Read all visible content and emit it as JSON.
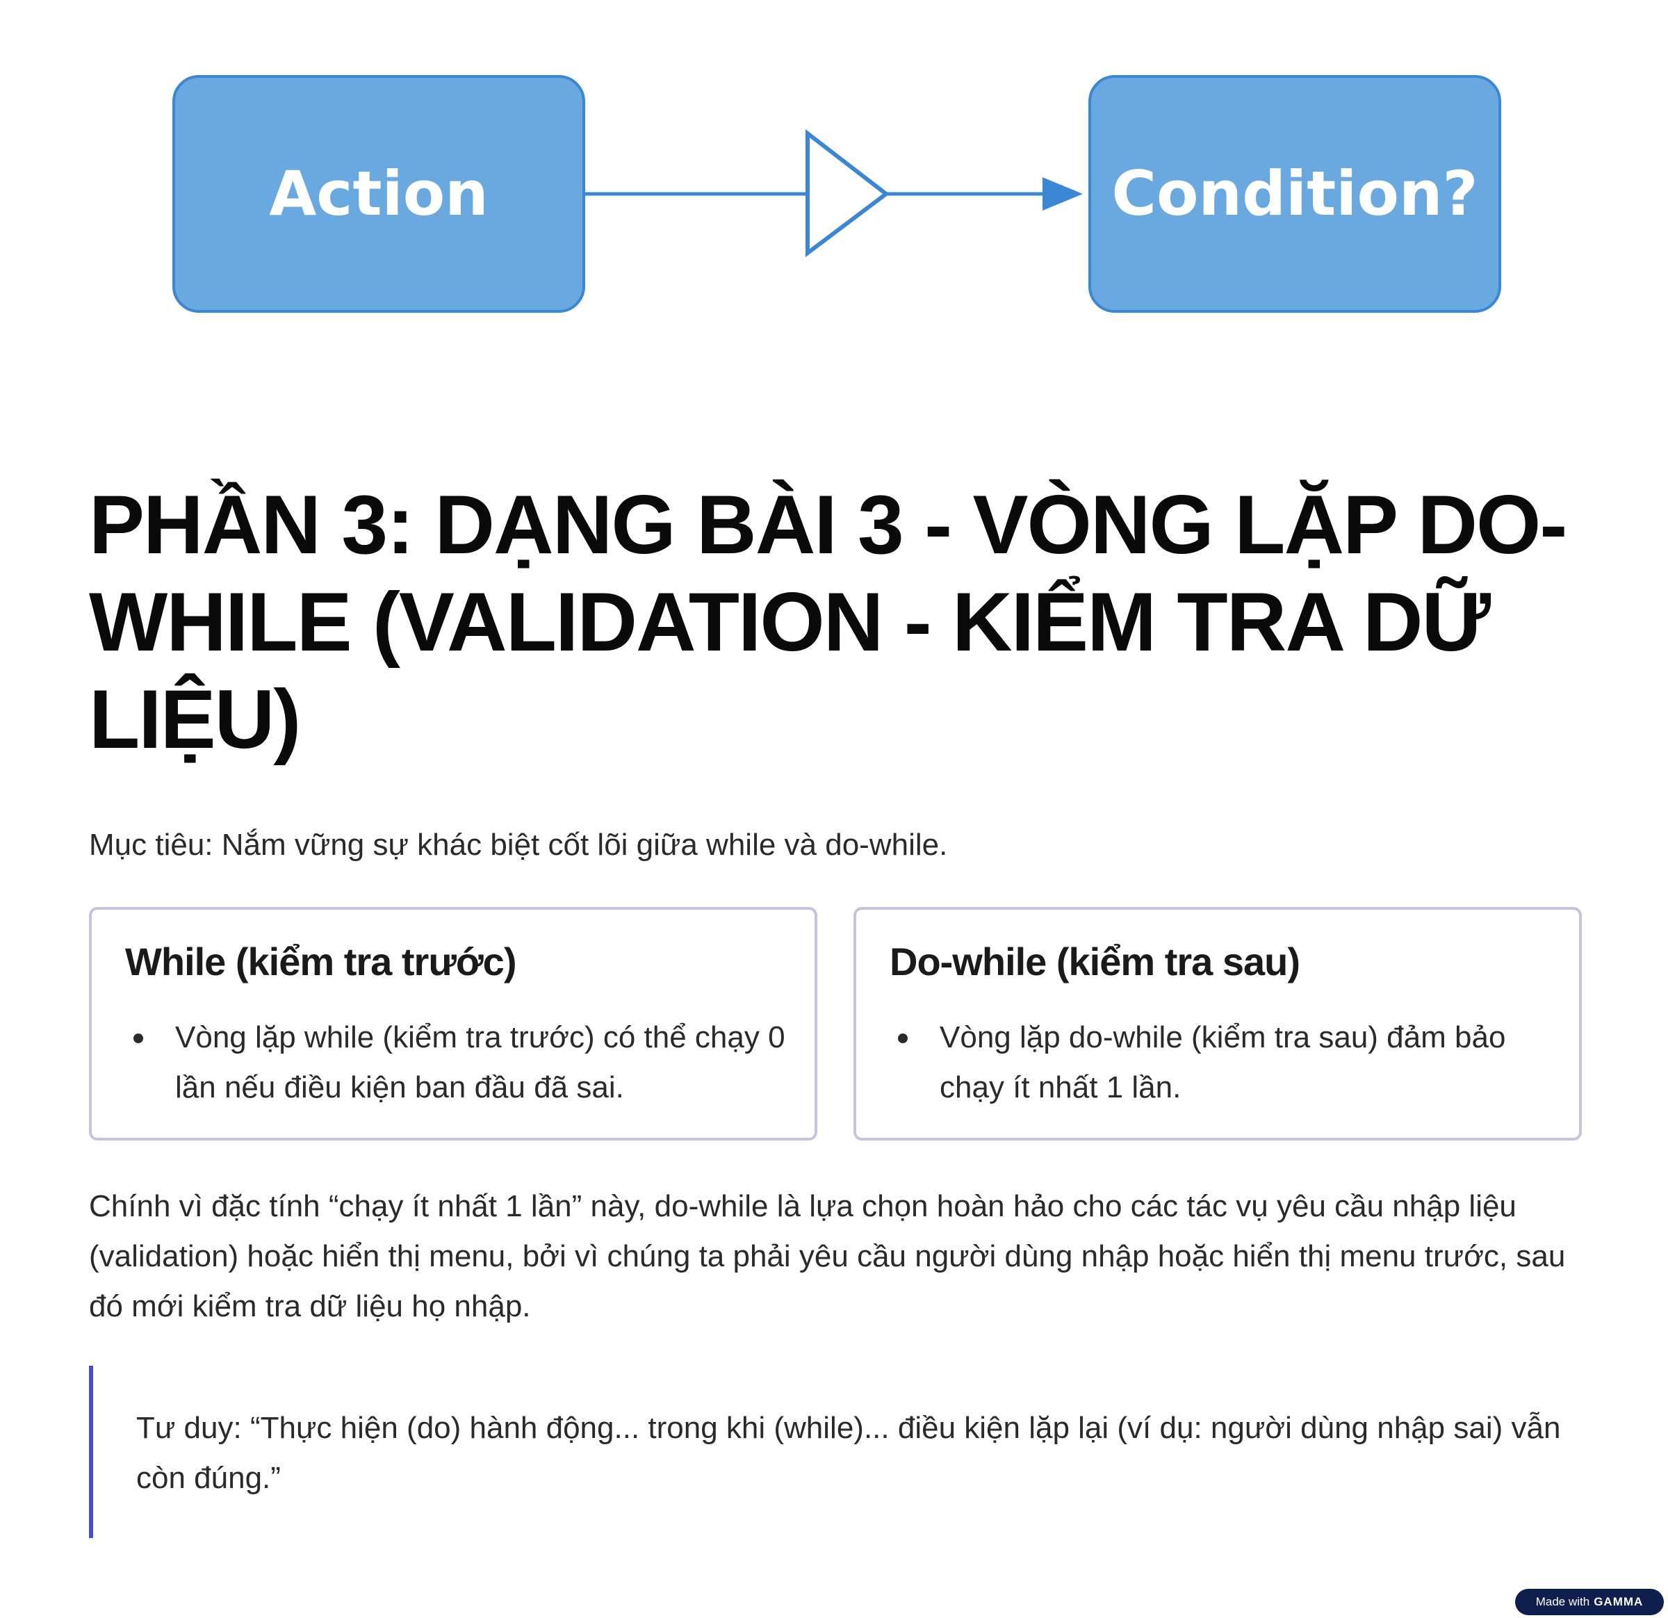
{
  "diagram": {
    "action_label": "Action",
    "condition_label": "Condition?",
    "colors": {
      "box_fill": "#6aa9e0",
      "box_border": "#3b87d3",
      "connector": "#3b87d3"
    }
  },
  "title": "PHẦN 3: DẠNG BÀI 3 - VÒNG LẶP DO-WHILE (VALIDATION - KIỂM TRA DỮ LIỆU)",
  "objective": "Mục tiêu: Nắm vững sự khác biệt cốt lõi giữa while và do-while.",
  "cards": [
    {
      "heading": "While (kiểm tra trước)",
      "bullet": "Vòng lặp while (kiểm tra trước) có thể chạy 0 lần nếu điều kiện ban đầu đã sai."
    },
    {
      "heading": "Do-while (kiểm tra sau)",
      "bullet": "Vòng lặp do-while (kiểm tra sau) đảm bảo chạy ít nhất 1 lần."
    }
  ],
  "paragraph": "Chính vì đặc tính “chạy ít nhất 1 lần” này, do-while là lựa chọn hoàn hảo cho các tác vụ yêu cầu nhập liệu (validation) hoặc hiển thị menu, bởi vì chúng ta phải yêu cầu người dùng nhập hoặc hiển thị menu trước, sau đó mới kiểm tra dữ liệu họ nhập.",
  "quote": "Tư duy: “Thực hiện (do) hành động... trong khi (while)... điều kiện lặp lại (ví dụ: người dùng nhập sai) vẫn còn đúng.”",
  "badge": {
    "made_with": "Made with",
    "brand": "GAMMA"
  },
  "accent_color": "#4b4fc4"
}
